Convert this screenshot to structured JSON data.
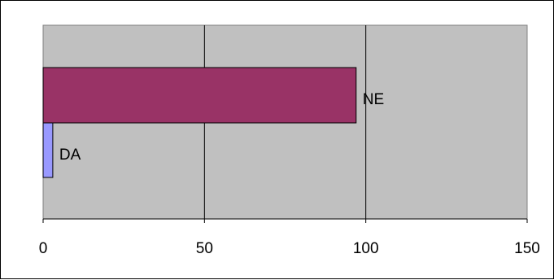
{
  "chart_data": {
    "type": "bar",
    "orientation": "horizontal",
    "title": "",
    "xlabel": "",
    "ylabel": "",
    "xlim": [
      0,
      150
    ],
    "x_ticks": [
      "0",
      "50",
      "100",
      "150"
    ],
    "grid": "vertical lines at major ticks",
    "legend": "none",
    "series": [
      {
        "label": "NE",
        "value": 97,
        "color": "#993366"
      },
      {
        "label": "DA",
        "value": 3,
        "color": "#9999FF"
      }
    ],
    "plot_background": "#C0C0C0"
  }
}
